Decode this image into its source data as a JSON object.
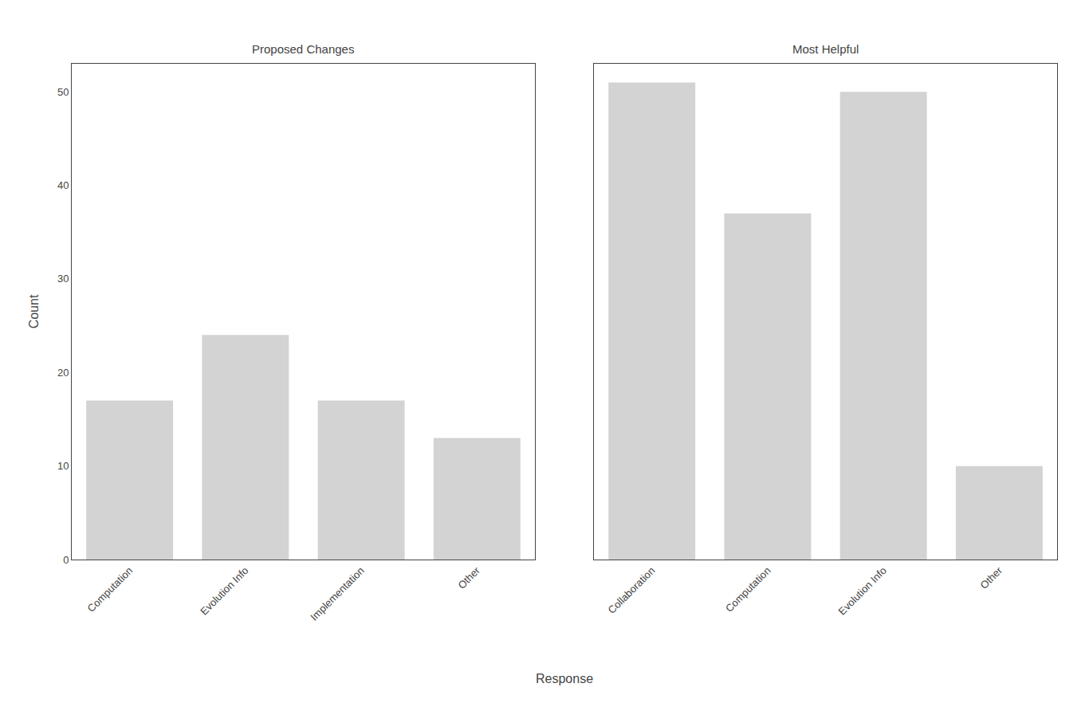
{
  "chart_data": [
    {
      "type": "bar",
      "title": "Proposed Changes",
      "categories": [
        "Computation",
        "Evolution Info",
        "Implementation",
        "Other"
      ],
      "values": [
        17,
        24,
        17,
        13
      ],
      "color": "#d3d3d3",
      "xlabel": "Response",
      "ylabel": "Count",
      "ylim": [
        0,
        53
      ],
      "yticks": [
        0,
        10,
        20,
        30,
        40,
        50
      ],
      "grid": false
    },
    {
      "type": "bar",
      "title": "Most Helpful",
      "categories": [
        "Collaboration",
        "Computation",
        "Evolution Info",
        "Other"
      ],
      "values": [
        51,
        37,
        50,
        10
      ],
      "color": "#d3d3d3",
      "ylim": [
        0,
        53
      ],
      "yticks": [
        0,
        10,
        20,
        30,
        40,
        50
      ],
      "grid": false,
      "tick_labels": "x"
    }
  ]
}
